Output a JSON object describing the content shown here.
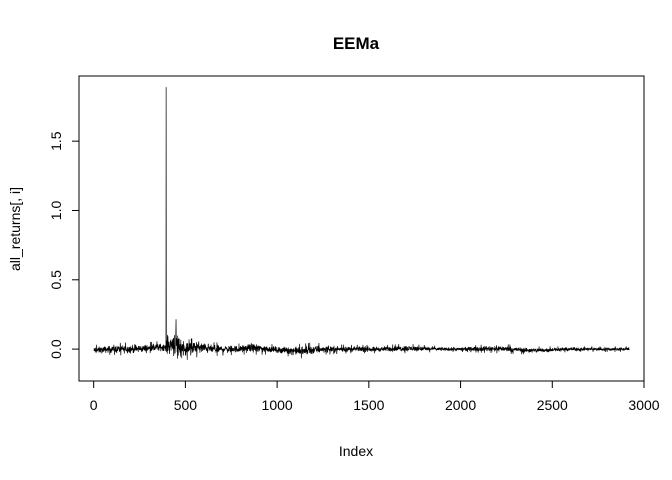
{
  "chart_data": {
    "type": "line",
    "title": "EEMa",
    "xlabel": "Index",
    "ylabel": "all_returns[, i]",
    "xlim": [
      -80,
      3000
    ],
    "ylim": [
      -0.23,
      1.97
    ],
    "x_ticks": [
      0,
      500,
      1000,
      1500,
      2000,
      2500,
      3000
    ],
    "x_tick_labels": [
      "0",
      "500",
      "1000",
      "1500",
      "2000",
      "2500",
      "3000"
    ],
    "y_ticks": [
      0.0,
      0.5,
      1.0,
      1.5
    ],
    "y_tick_labels": [
      "0.0",
      "0.5",
      "1.0",
      "1.5"
    ],
    "grid": false,
    "legend": "none",
    "series": [
      {
        "color": "#000000",
        "n_points": 2920,
        "envelope": [
          {
            "x": 1,
            "y_min": -0.05,
            "y_max": 0.03
          },
          {
            "x": 100,
            "y_min": -0.04,
            "y_max": 0.04
          },
          {
            "x": 200,
            "y_min": -0.05,
            "y_max": 0.05
          },
          {
            "x": 300,
            "y_min": -0.04,
            "y_max": 0.05
          },
          {
            "x": 380,
            "y_min": -0.03,
            "y_max": 0.06
          },
          {
            "x": 395,
            "y_min": -0.05,
            "y_max": 1.89
          },
          {
            "x": 420,
            "y_min": -0.08,
            "y_max": 0.14
          },
          {
            "x": 440,
            "y_min": -0.12,
            "y_max": 0.22
          },
          {
            "x": 460,
            "y_min": -0.16,
            "y_max": 0.21
          },
          {
            "x": 480,
            "y_min": -0.1,
            "y_max": 0.12
          },
          {
            "x": 520,
            "y_min": -0.07,
            "y_max": 0.07
          },
          {
            "x": 560,
            "y_min": -0.06,
            "y_max": 0.09
          },
          {
            "x": 650,
            "y_min": -0.05,
            "y_max": 0.05
          },
          {
            "x": 800,
            "y_min": -0.04,
            "y_max": 0.04
          },
          {
            "x": 860,
            "y_min": -0.04,
            "y_max": 0.06
          },
          {
            "x": 1000,
            "y_min": -0.04,
            "y_max": 0.03
          },
          {
            "x": 1150,
            "y_min": -0.07,
            "y_max": 0.04
          },
          {
            "x": 1200,
            "y_min": -0.06,
            "y_max": 0.05
          },
          {
            "x": 1250,
            "y_min": -0.04,
            "y_max": 0.04
          },
          {
            "x": 1400,
            "y_min": -0.03,
            "y_max": 0.03
          },
          {
            "x": 1600,
            "y_min": -0.03,
            "y_max": 0.03
          },
          {
            "x": 1700,
            "y_min": -0.03,
            "y_max": 0.04
          },
          {
            "x": 1900,
            "y_min": -0.02,
            "y_max": 0.02
          },
          {
            "x": 2000,
            "y_min": -0.02,
            "y_max": 0.02
          },
          {
            "x": 2200,
            "y_min": -0.03,
            "y_max": 0.04
          },
          {
            "x": 2400,
            "y_min": -0.04,
            "y_max": 0.02
          },
          {
            "x": 2600,
            "y_min": -0.02,
            "y_max": 0.02
          },
          {
            "x": 2800,
            "y_min": -0.02,
            "y_max": 0.02
          },
          {
            "x": 2920,
            "y_min": -0.02,
            "y_max": 0.02
          }
        ]
      }
    ]
  }
}
